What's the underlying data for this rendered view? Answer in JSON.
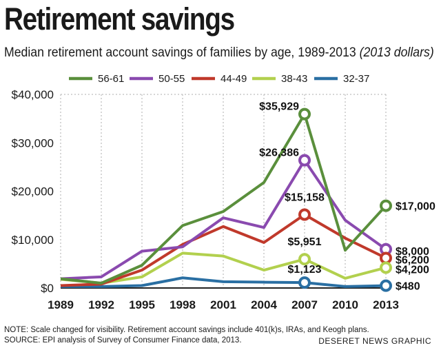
{
  "header": {
    "title": "Retirement savings",
    "subtitle_main": "Median retirement account savings of families by age, 1989-2013",
    "subtitle_italic": "(2013 dollars)"
  },
  "footer": {
    "note": "NOTE: Scale changed for visibility. Retirement account savings include 401(k)s, IRAs, and Keogh plans.",
    "source": "SOURCE: EPI analysis of  Survey of Consumer Finance data, 2013.",
    "credit": "DESERET NEWS GRAPHIC"
  },
  "chart_data": {
    "type": "line",
    "title": "Retirement savings",
    "subtitle": "Median retirement account savings of families by age, 1989-2013 (2013 dollars)",
    "x": [
      1989,
      1992,
      1995,
      1998,
      2001,
      2004,
      2007,
      2010,
      2013
    ],
    "x_tick_labels": [
      "1989",
      "1992",
      "1995",
      "1998",
      "2001",
      "2004",
      "2007",
      "2010",
      "2013"
    ],
    "ylim": [
      0,
      40000
    ],
    "y_ticks": [
      0,
      10000,
      20000,
      30000,
      40000
    ],
    "y_tick_labels": [
      "$0",
      "$10,000",
      "$20,000",
      "$30,000",
      "$40,000"
    ],
    "grid": "vertical",
    "legend_position": "top",
    "series": [
      {
        "name": "56-61",
        "color": "#5a8f3c",
        "values": [
          1900,
          1000,
          4700,
          12900,
          15800,
          21800,
          35929,
          7800,
          17000
        ],
        "labels": [
          {
            "x": 2007,
            "text": "$35,929"
          },
          {
            "x": 2013,
            "text": "$17,000"
          }
        ]
      },
      {
        "name": "50-55",
        "color": "#8a4aaf",
        "values": [
          1900,
          2300,
          7600,
          8500,
          14500,
          12500,
          26386,
          14000,
          8000
        ],
        "labels": [
          {
            "x": 2007,
            "text": "$26,386"
          },
          {
            "x": 2013,
            "text": "$8,000"
          }
        ]
      },
      {
        "name": "44-49",
        "color": "#c0392b",
        "values": [
          500,
          800,
          3700,
          9000,
          12700,
          9400,
          15158,
          10300,
          6200
        ],
        "labels": [
          {
            "x": 2007,
            "text": "$15,158"
          },
          {
            "x": 2013,
            "text": "$6,200"
          }
        ]
      },
      {
        "name": "38-43",
        "color": "#b2d04e",
        "values": [
          1800,
          1000,
          2300,
          7200,
          6600,
          3700,
          5951,
          2000,
          4200
        ],
        "labels": [
          {
            "x": 2007,
            "text": "$5,951"
          },
          {
            "x": 2013,
            "text": "$4,200"
          }
        ]
      },
      {
        "name": "32-37",
        "color": "#2a6fa3",
        "values": [
          300,
          300,
          500,
          2100,
          1300,
          1200,
          1123,
          300,
          480
        ],
        "labels": [
          {
            "x": 2007,
            "text": "$1,123"
          },
          {
            "x": 2013,
            "text": "$480"
          }
        ]
      }
    ]
  }
}
